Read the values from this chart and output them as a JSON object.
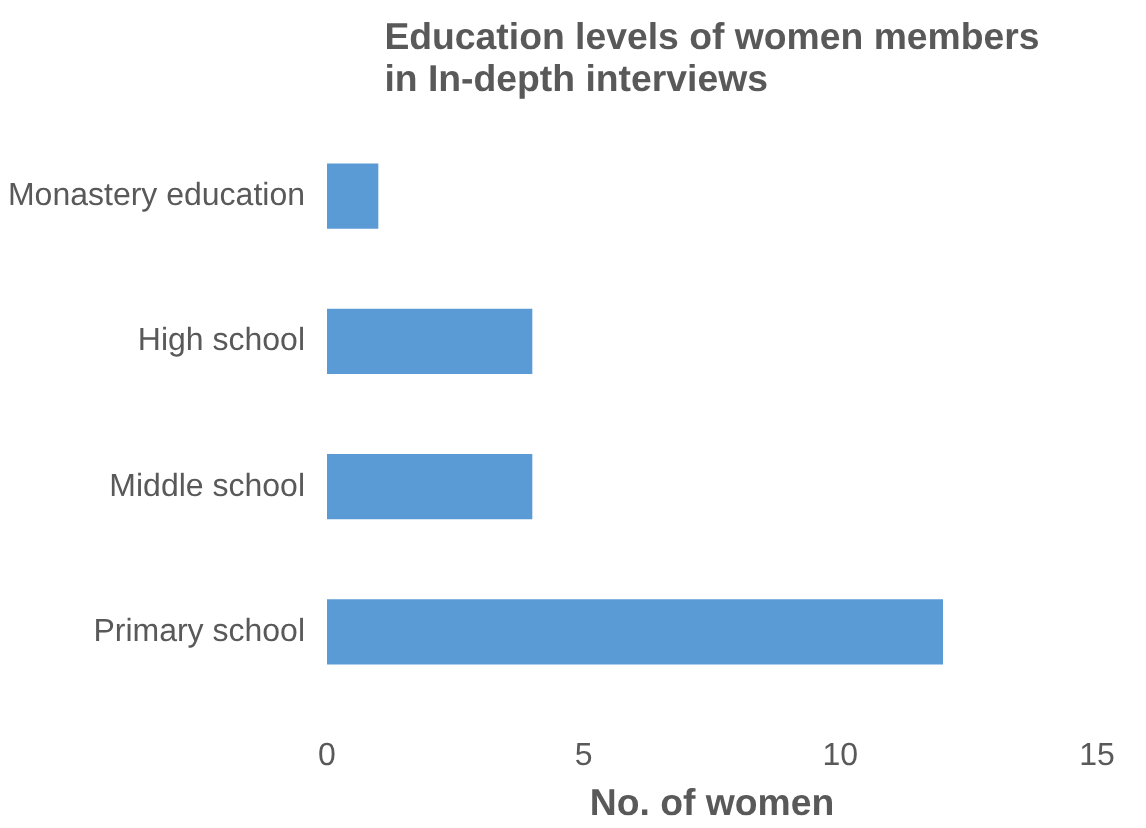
{
  "chart_data": {
    "type": "bar",
    "orientation": "horizontal",
    "title": "Education levels of women members\nin In-depth interviews",
    "xlabel": "No. of women",
    "categories": [
      "Monastery education",
      "High school",
      "Middle school",
      "Primary school"
    ],
    "values": [
      1,
      4,
      4,
      12
    ],
    "color": "#5b9bd5",
    "xlim": [
      0,
      15
    ],
    "xticks": [
      0,
      5,
      10,
      15
    ],
    "grid": false
  }
}
